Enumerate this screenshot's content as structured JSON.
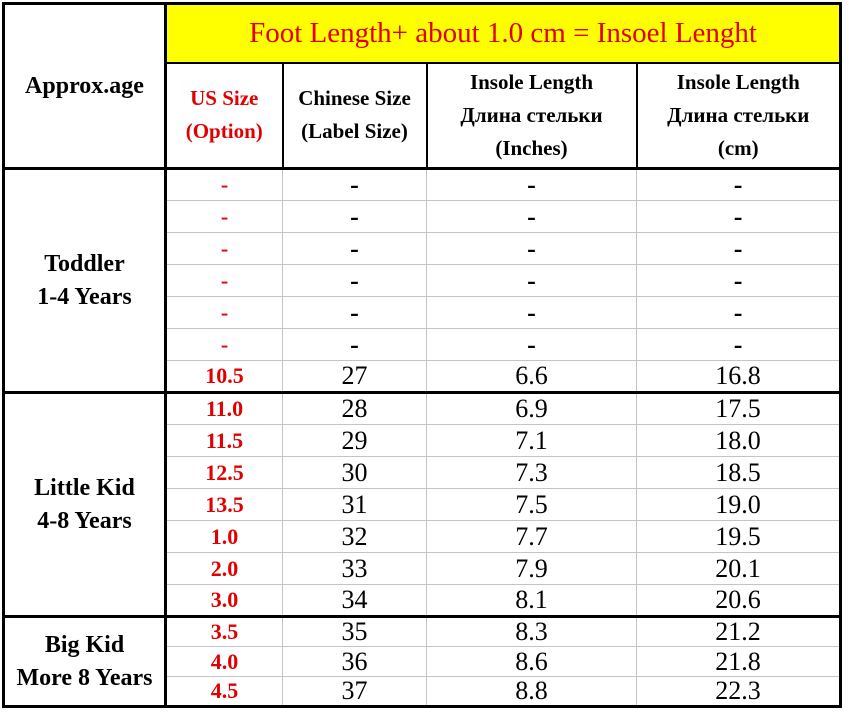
{
  "banner": {
    "text": "Foot Length+ about 1.0 cm = Insoel Lenght"
  },
  "header": {
    "age_label": "Approx.age",
    "us_size": [
      "US Size",
      "(Option)"
    ],
    "chinese_size": [
      "Chinese Size",
      "(Label Size)"
    ],
    "insole_inches": [
      "Insole Length",
      "Длина стельки",
      "(Inches)"
    ],
    "insole_cm": [
      "Insole Length",
      "Длина стельки",
      "(cm)"
    ]
  },
  "sections": [
    {
      "age_label": [
        "Toddler",
        "1-4 Years"
      ],
      "rows": [
        [
          "-",
          "-",
          "-",
          "-"
        ],
        [
          "-",
          "-",
          "-",
          "-"
        ],
        [
          "-",
          "-",
          "-",
          "-"
        ],
        [
          "-",
          "-",
          "-",
          "-"
        ],
        [
          "-",
          "-",
          "-",
          "-"
        ],
        [
          "-",
          "-",
          "-",
          "-"
        ],
        [
          "10.5",
          "27",
          "6.6",
          "16.8"
        ]
      ]
    },
    {
      "age_label": [
        "Little Kid",
        "4-8 Years"
      ],
      "rows": [
        [
          "11.0",
          "28",
          "6.9",
          "17.5"
        ],
        [
          "11.5",
          "29",
          "7.1",
          "18.0"
        ],
        [
          "12.5",
          "30",
          "7.3",
          "18.5"
        ],
        [
          "13.5",
          "31",
          "7.5",
          "19.0"
        ],
        [
          "1.0",
          "32",
          "7.7",
          "19.5"
        ],
        [
          "2.0",
          "33",
          "7.9",
          "20.1"
        ],
        [
          "3.0",
          "34",
          "8.1",
          "20.6"
        ]
      ]
    },
    {
      "age_label": [
        "Big Kid",
        "More 8 Years"
      ],
      "rows": [
        [
          "3.5",
          "35",
          "8.3",
          "21.2"
        ],
        [
          "4.0",
          "36",
          "8.6",
          "21.8"
        ],
        [
          "4.5",
          "37",
          "8.8",
          "22.3"
        ]
      ]
    }
  ],
  "colors": {
    "accent_red": "#e00000",
    "banner_yellow": "#ffff00",
    "gridline_gray": "#c4c4c4",
    "border_black": "#000000"
  },
  "chart_data": {
    "type": "table",
    "title": "Foot Length+ about 1.0 cm = Insoel Lenght",
    "columns": [
      "Approx.age",
      "US Size (Option)",
      "Chinese Size (Label Size)",
      "Insole Length Длина стельки (Inches)",
      "Insole Length Длина стельки (cm)"
    ],
    "rows": [
      [
        "Toddler 1-4 Years",
        "-",
        "-",
        "-",
        "-"
      ],
      [
        "Toddler 1-4 Years",
        "-",
        "-",
        "-",
        "-"
      ],
      [
        "Toddler 1-4 Years",
        "-",
        "-",
        "-",
        "-"
      ],
      [
        "Toddler 1-4 Years",
        "-",
        "-",
        "-",
        "-"
      ],
      [
        "Toddler 1-4 Years",
        "-",
        "-",
        "-",
        "-"
      ],
      [
        "Toddler 1-4 Years",
        "-",
        "-",
        "-",
        "-"
      ],
      [
        "Toddler 1-4 Years",
        "10.5",
        "27",
        "6.6",
        "16.8"
      ],
      [
        "Little Kid 4-8 Years",
        "11.0",
        "28",
        "6.9",
        "17.5"
      ],
      [
        "Little Kid 4-8 Years",
        "11.5",
        "29",
        "7.1",
        "18.0"
      ],
      [
        "Little Kid 4-8 Years",
        "12.5",
        "30",
        "7.3",
        "18.5"
      ],
      [
        "Little Kid 4-8 Years",
        "13.5",
        "31",
        "7.5",
        "19.0"
      ],
      [
        "Little Kid 4-8 Years",
        "1.0",
        "32",
        "7.7",
        "19.5"
      ],
      [
        "Little Kid 4-8 Years",
        "2.0",
        "33",
        "7.9",
        "20.1"
      ],
      [
        "Little Kid 4-8 Years",
        "3.0",
        "34",
        "8.1",
        "20.6"
      ],
      [
        "Big Kid More 8 Years",
        "3.5",
        "35",
        "8.3",
        "21.2"
      ],
      [
        "Big Kid More 8 Years",
        "4.0",
        "36",
        "8.6",
        "21.8"
      ],
      [
        "Big Kid More 8 Years",
        "4.5",
        "37",
        "8.8",
        "22.3"
      ]
    ]
  }
}
